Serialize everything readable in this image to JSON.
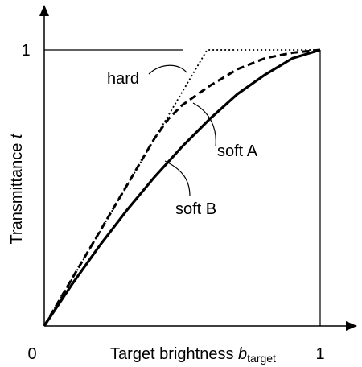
{
  "chart_data": {
    "type": "line",
    "xlabel": {
      "text": "Target brightness",
      "var": "b",
      "subscript": "target"
    },
    "ylabel": {
      "text": "Transmittance",
      "var": "t"
    },
    "xlim": [
      0,
      1
    ],
    "ylim": [
      0,
      1
    ],
    "xticks": [
      0,
      1
    ],
    "yticks": [
      1
    ],
    "series": [
      {
        "name": "hard",
        "color": "#000000",
        "style": "dotted",
        "x": [
          0,
          0.59,
          1
        ],
        "values": [
          0,
          1,
          1
        ]
      },
      {
        "name": "soft A",
        "color": "#000000",
        "style": "dashed",
        "x": [
          0,
          0.1,
          0.2,
          0.3,
          0.4,
          0.45,
          0.5,
          0.6,
          0.7,
          0.8,
          0.9,
          1
        ],
        "values": [
          0,
          0.17,
          0.34,
          0.51,
          0.68,
          0.75,
          0.8,
          0.87,
          0.93,
          0.97,
          0.99,
          1
        ]
      },
      {
        "name": "soft B",
        "color": "#000000",
        "style": "solid",
        "x": [
          0,
          0.1,
          0.2,
          0.3,
          0.4,
          0.5,
          0.6,
          0.7,
          0.8,
          0.9,
          1
        ],
        "values": [
          0,
          0.15,
          0.29,
          0.42,
          0.54,
          0.65,
          0.75,
          0.84,
          0.91,
          0.97,
          1
        ]
      }
    ]
  }
}
